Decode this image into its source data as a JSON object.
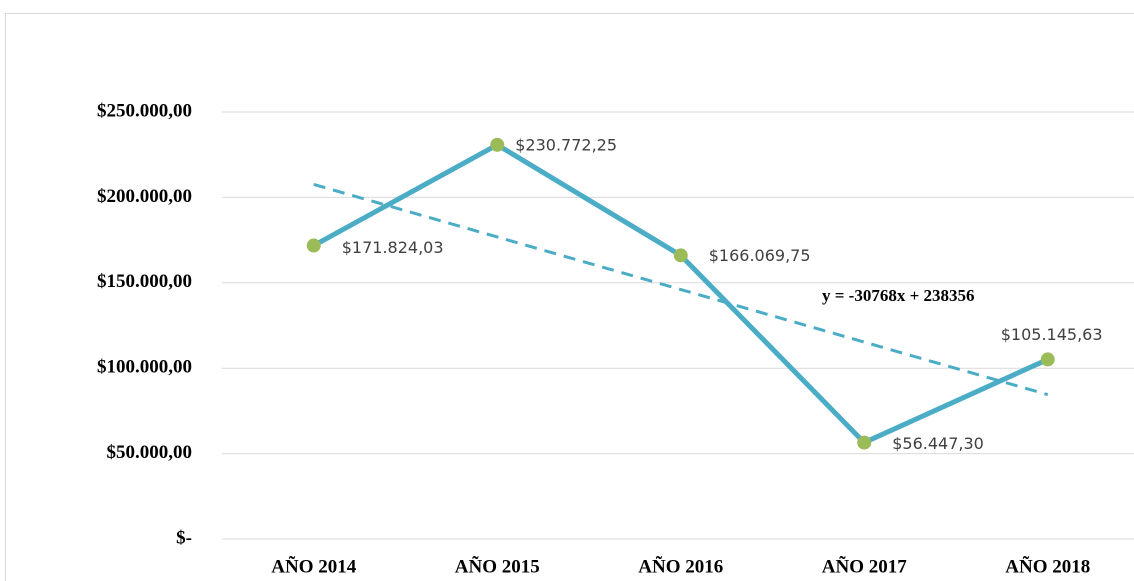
{
  "chart_data": {
    "type": "line",
    "categories": [
      "AÑO 2014",
      "AÑO 2015",
      "AÑO 2016",
      "AÑO 2017",
      "AÑO 2018"
    ],
    "series": [
      {
        "color": "#4bacc6",
        "marker_color": "#9bbb59",
        "values": [
          171824.03,
          230772.25,
          166069.75,
          56447.3,
          105145.63
        ],
        "value_labels": [
          "$171.824,03",
          "$230.772,25",
          "$166.069,75",
          "$56.447,30",
          "$105.145,63"
        ]
      }
    ],
    "trendline": {
      "color": "#4bacc6",
      "dashed": true,
      "label": "y = -30768x + 238356",
      "values": [
        207588,
        176820,
        146052,
        115284,
        84516
      ]
    },
    "ylim": [
      0,
      250000
    ],
    "yticks": [
      {
        "value": 0,
        "label": "$-"
      },
      {
        "value": 50000,
        "label": "$50.000,00"
      },
      {
        "value": 100000,
        "label": "$100.000,00"
      },
      {
        "value": 150000,
        "label": "$150.000,00"
      },
      {
        "value": 200000,
        "label": "$200.000,00"
      },
      {
        "value": 250000,
        "label": "$250.000,00"
      }
    ],
    "grid": true
  }
}
